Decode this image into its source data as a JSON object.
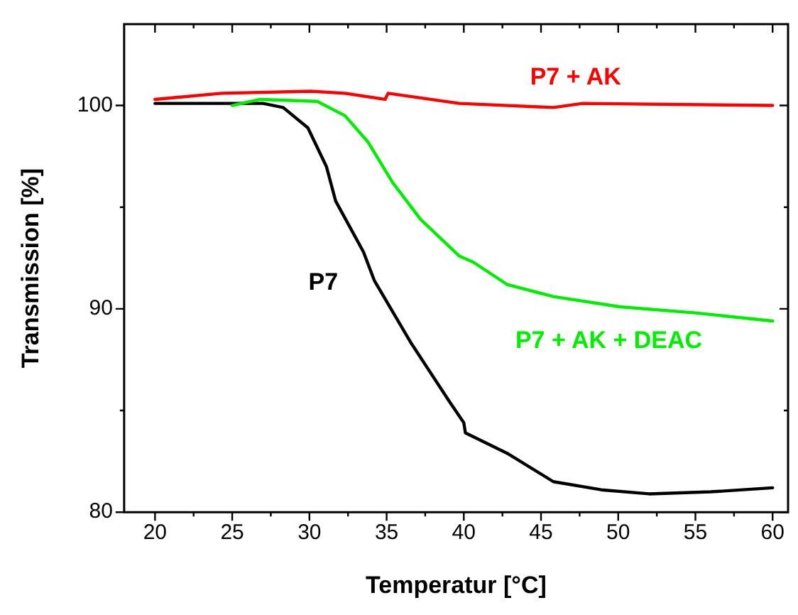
{
  "chart_data": {
    "type": "line",
    "xlabel": "Temperatur [°C]",
    "ylabel": "Transmission [%]",
    "xlim": [
      18,
      61
    ],
    "ylim": [
      80,
      104
    ],
    "xticks": [
      20,
      {
        "value": 22.5,
        "label": null
      },
      25,
      {
        "value": 27.5,
        "label": null
      },
      30,
      {
        "value": 32.5,
        "label": null
      },
      35,
      {
        "value": 37.5,
        "label": null
      },
      40,
      {
        "value": 42.5,
        "label": null
      },
      45,
      {
        "value": 47.5,
        "label": null
      },
      50,
      {
        "value": 52.5,
        "label": null
      },
      55,
      {
        "value": 57.5,
        "label": null
      },
      60
    ],
    "yticks": [
      80,
      {
        "value": 85,
        "label": null
      },
      90,
      {
        "value": 95,
        "label": null
      },
      100
    ],
    "grid": false,
    "legend": false,
    "marker": "none",
    "line_style": "solid",
    "series": [
      {
        "name": "P7 + AK",
        "color": "#ff0000",
        "x": [
          20,
          24.3,
          30.1,
          32.3,
          34.9,
          35.1,
          39.7,
          45.8,
          47.7,
          60
        ],
        "values": [
          100.3,
          100.6,
          100.7,
          100.6,
          100.3,
          100.6,
          100.1,
          99.9,
          100.1,
          100.0
        ]
      },
      {
        "name": "P7 + AK + DEAC",
        "color": "#00ee00",
        "x": [
          25,
          26.8,
          30.5,
          32.3,
          33.8,
          35.4,
          37.2,
          39.7,
          40.6,
          42.8,
          45.8,
          50.1,
          55,
          60
        ],
        "values": [
          100,
          100.3,
          100.2,
          99.5,
          98.2,
          96.2,
          94.4,
          92.6,
          92.3,
          91.2,
          90.6,
          90.1,
          89.8,
          89.4
        ]
      },
      {
        "name": "P7",
        "color": "#000000",
        "x": [
          20,
          25,
          27,
          28.3,
          29.9,
          31.1,
          31.7,
          33.5,
          34.2,
          36.6,
          39.1,
          40,
          40.1,
          42.8,
          45.8,
          48.9,
          52,
          56,
          60
        ],
        "values": [
          100.1,
          100.1,
          100.1,
          99.9,
          98.9,
          97.0,
          95.3,
          92.8,
          91.4,
          88.3,
          85.4,
          84.4,
          83.9,
          82.9,
          81.5,
          81.1,
          80.9,
          81.0,
          81.2
        ]
      }
    ]
  }
}
